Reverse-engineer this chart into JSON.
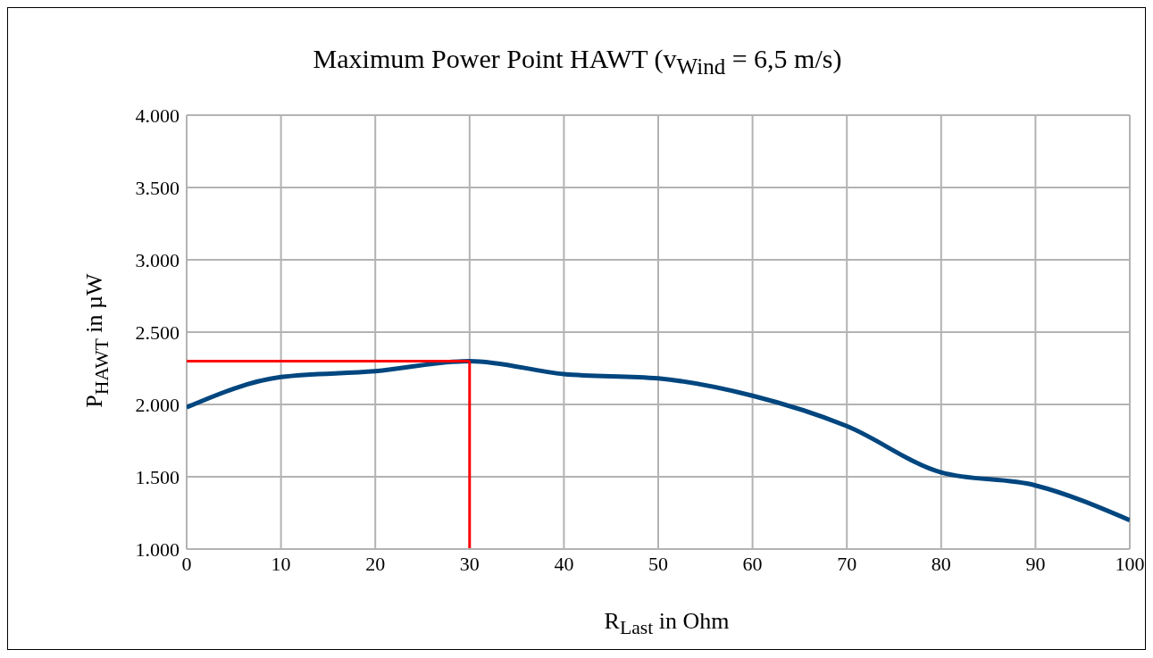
{
  "chart_data": {
    "type": "line",
    "title": "Maximum Power Point HAWT (v$_{Wind}$ = 6,5 m/s)",
    "xlabel": "R$_{Last}$ in Ohm",
    "ylabel": "P$_{HAWT}$ in µW",
    "x": [
      0,
      10,
      20,
      30,
      40,
      50,
      60,
      70,
      80,
      90,
      100
    ],
    "series": [
      {
        "color": "#00467f",
        "values": [
          1980,
          2190,
          2230,
          2300,
          2210,
          2180,
          2060,
          1850,
          1530,
          1440,
          1200
        ]
      }
    ],
    "xlim": [
      0,
      100
    ],
    "xticks": [
      0,
      10,
      20,
      30,
      40,
      50,
      60,
      70,
      80,
      90,
      100
    ],
    "ylim": [
      1000,
      4000
    ],
    "yticks": [
      {
        "value": 1000,
        "label": "1.000"
      },
      {
        "value": 1500,
        "label": "1.500"
      },
      {
        "value": 2000,
        "label": "2.000"
      },
      {
        "value": 2500,
        "label": "2.500"
      },
      {
        "value": 3000,
        "label": "3.000"
      },
      {
        "value": 3500,
        "label": "3.500"
      },
      {
        "value": 4000,
        "label": "4.000"
      }
    ],
    "ref_lines": [
      {
        "axis": "y",
        "value": 2300,
        "color": "#ff0000"
      },
      {
        "axis": "x",
        "value": 30,
        "color": "#ff0000"
      }
    ],
    "grid": true,
    "legend": false,
    "marker": "none",
    "line_style": "solid"
  }
}
